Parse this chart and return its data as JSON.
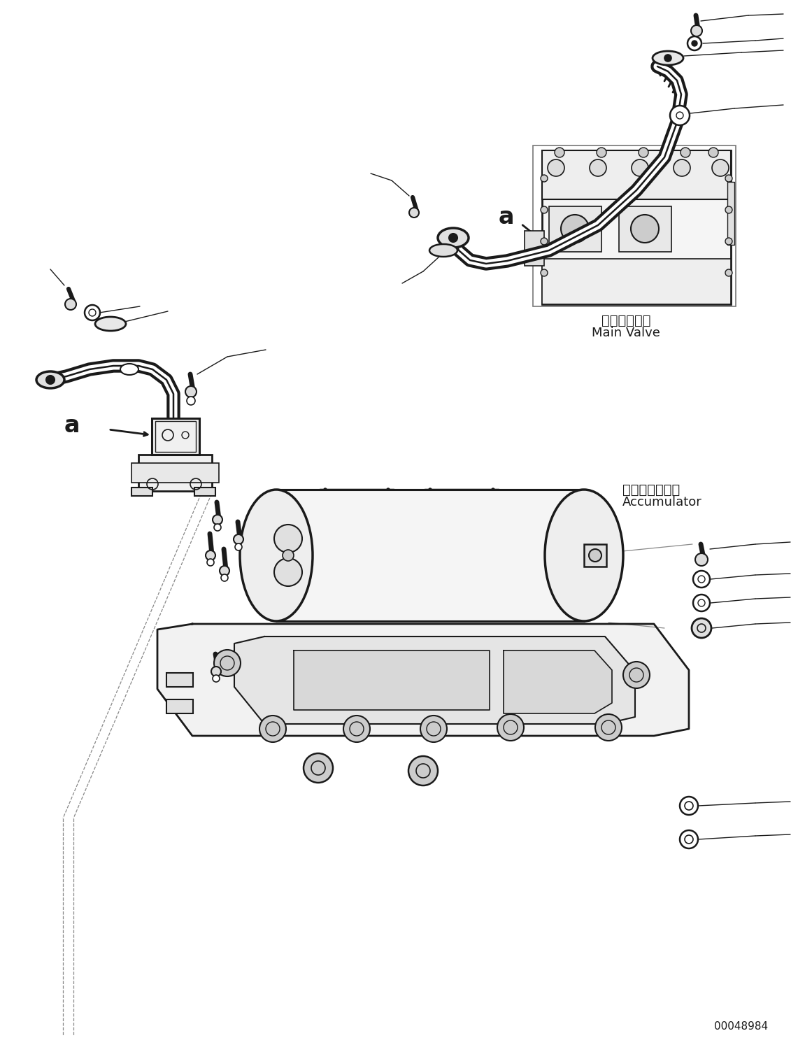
{
  "title": "",
  "background_color": "#ffffff",
  "line_color": "#1a1a1a",
  "fig_width": 11.51,
  "fig_height": 14.84,
  "part_number": "00048984",
  "label_main_valve_jp": "メインバルブ",
  "label_main_valve_en": "Main Valve",
  "label_accumulator_jp": "アキュムレータ",
  "label_accumulator_en": "Accumulator",
  "label_a": "a"
}
